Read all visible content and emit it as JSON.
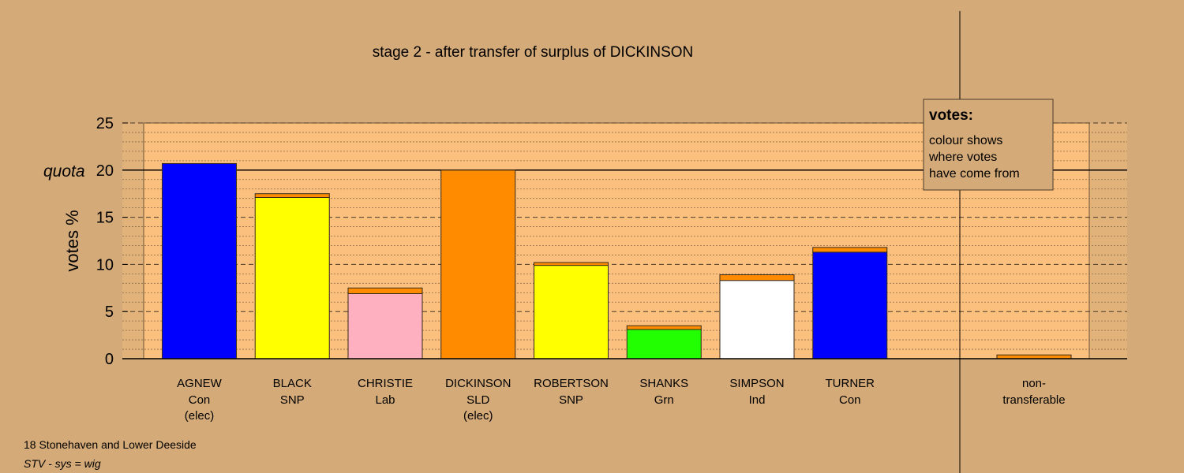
{
  "chart_data": {
    "type": "bar",
    "title": "stage 2 - after transfer of surplus of DICKINSON",
    "ylabel": "votes %",
    "ylim": [
      0,
      25
    ],
    "yticks": [
      0,
      5,
      10,
      15,
      20,
      25
    ],
    "quota": 20,
    "quota_label": "quota",
    "categories": [
      {
        "name": "AGNEW",
        "party": "Con",
        "note": "(elec)"
      },
      {
        "name": "BLACK",
        "party": "SNP",
        "note": ""
      },
      {
        "name": "CHRISTIE",
        "party": "Lab",
        "note": ""
      },
      {
        "name": "DICKINSON",
        "party": "SLD",
        "note": "(elec)"
      },
      {
        "name": "ROBERTSON",
        "party": "SNP",
        "note": ""
      },
      {
        "name": "SHANKS",
        "party": "Grn",
        "note": ""
      },
      {
        "name": "SIMPSON",
        "party": "Ind",
        "note": ""
      },
      {
        "name": "TURNER",
        "party": "Con",
        "note": ""
      }
    ],
    "bars": [
      {
        "segments": [
          {
            "value": 20.7,
            "color": "#0000ff"
          }
        ]
      },
      {
        "segments": [
          {
            "value": 17.1,
            "color": "#ffff00"
          },
          {
            "value": 0.4,
            "color": "#ff8c00"
          }
        ]
      },
      {
        "segments": [
          {
            "value": 6.9,
            "color": "#ffb0c0"
          },
          {
            "value": 0.6,
            "color": "#ff8c00"
          }
        ]
      },
      {
        "segments": [
          {
            "value": 20.0,
            "color": "#ff8c00"
          }
        ]
      },
      {
        "segments": [
          {
            "value": 9.9,
            "color": "#ffff00"
          },
          {
            "value": 0.3,
            "color": "#ff8c00"
          }
        ]
      },
      {
        "segments": [
          {
            "value": 3.1,
            "color": "#22ff00"
          },
          {
            "value": 0.4,
            "color": "#ff8c00"
          }
        ]
      },
      {
        "segments": [
          {
            "value": 8.3,
            "color": "#ffffff"
          },
          {
            "value": 0.6,
            "color": "#ff8c00"
          }
        ]
      },
      {
        "segments": [
          {
            "value": 11.3,
            "color": "#0000ff"
          },
          {
            "value": 0.5,
            "color": "#ff8c00"
          }
        ]
      }
    ],
    "nontransferable": {
      "label_line1": "non-",
      "label_line2": "transferable",
      "value": 0.4,
      "color": "#ff8c00"
    },
    "legend": {
      "title": "votes:",
      "lines": [
        "colour shows",
        "where votes",
        "have come from"
      ],
      "position": "top-right"
    },
    "grid": true
  },
  "footer": {
    "line1": "18 Stonehaven and Lower Deeside",
    "line2": "STV - sys = wig"
  },
  "colors": {
    "background": "#d4aa78",
    "plot_background": "#fbc07e",
    "outer_band": "#e1b37a"
  }
}
